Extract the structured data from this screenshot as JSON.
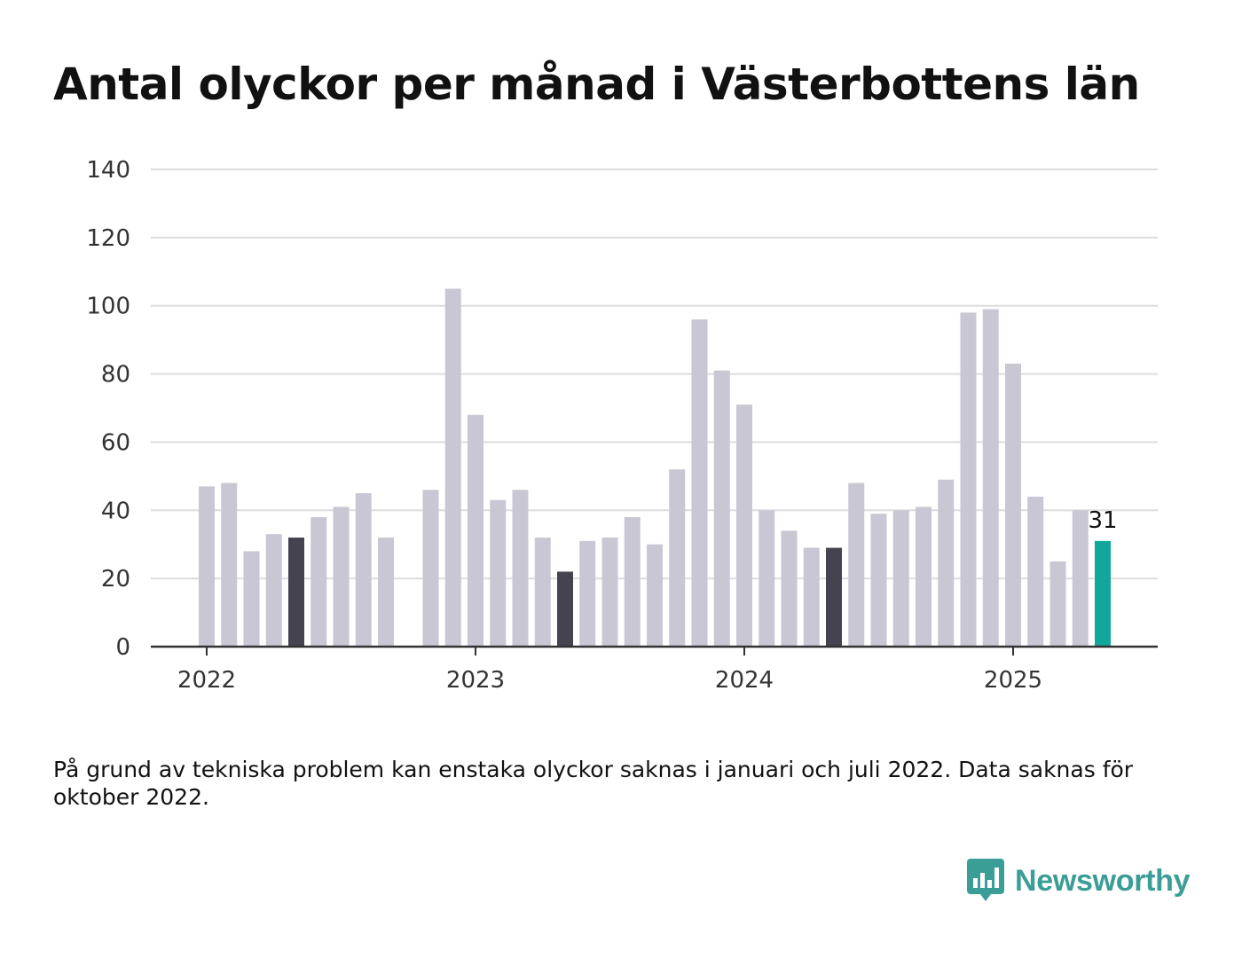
{
  "title": "Antal olyckor per månad i Västerbottens län",
  "note": "På grund av tekniska problem kan enstaka olyckor saknas i januari och juli 2022. Data saknas för oktober 2022.",
  "brand": {
    "name": "Newsworthy",
    "icon": "newsworthy-logo-icon",
    "color": "#3a9d96"
  },
  "colors": {
    "default": "#c8c7d3",
    "highlight": "#44434f",
    "latest": "#12a79b",
    "grid": "#dddddd",
    "axis": "#333333"
  },
  "chart_data": {
    "type": "bar",
    "title": "Antal olyckor per månad i Västerbottens län",
    "xlabel": "",
    "ylabel": "",
    "ylim": [
      0,
      140
    ],
    "yticks": [
      0,
      20,
      40,
      60,
      80,
      100,
      120,
      140
    ],
    "xtick_labels": [
      "2022",
      "2023",
      "2024",
      "2025"
    ],
    "grid": true,
    "categories": [
      "2022-01",
      "2022-02",
      "2022-03",
      "2022-04",
      "2022-05",
      "2022-06",
      "2022-07",
      "2022-08",
      "2022-09",
      "2022-10",
      "2022-11",
      "2022-12",
      "2023-01",
      "2023-02",
      "2023-03",
      "2023-04",
      "2023-05",
      "2023-06",
      "2023-07",
      "2023-08",
      "2023-09",
      "2023-10",
      "2023-11",
      "2023-12",
      "2024-01",
      "2024-02",
      "2024-03",
      "2024-04",
      "2024-05",
      "2024-06",
      "2024-07",
      "2024-08",
      "2024-09",
      "2024-10",
      "2024-11",
      "2024-12",
      "2025-01",
      "2025-02",
      "2025-03",
      "2025-04",
      "2025-05"
    ],
    "values": [
      47,
      48,
      28,
      33,
      32,
      38,
      41,
      45,
      32,
      null,
      46,
      105,
      68,
      43,
      46,
      32,
      22,
      31,
      32,
      38,
      30,
      52,
      96,
      81,
      71,
      40,
      34,
      29,
      29,
      48,
      39,
      40,
      41,
      49,
      98,
      99,
      83,
      44,
      25,
      40,
      31
    ],
    "highlighted": [
      "2022-05",
      "2023-05",
      "2024-05"
    ],
    "latest": "2025-05",
    "latest_label": "31"
  }
}
